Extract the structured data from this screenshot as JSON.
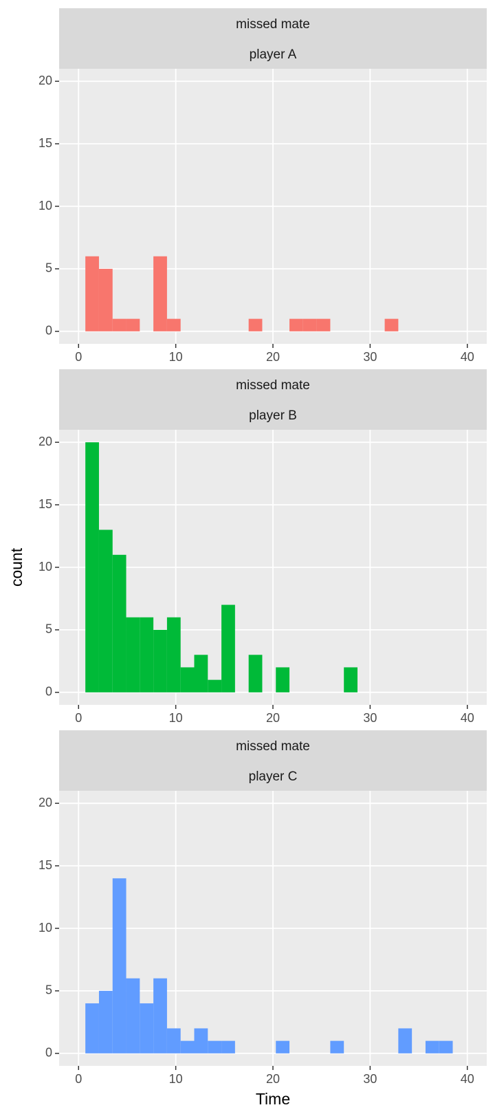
{
  "chart_data": [
    {
      "type": "histogram",
      "strip": [
        "missed mate",
        "player A"
      ],
      "color": "#F8766D",
      "bins": [
        0.7,
        2.1,
        3.5,
        4.9,
        6.3,
        7.7,
        9.1,
        10.5,
        11.9,
        13.3,
        14.7,
        16.1,
        17.5,
        18.9,
        20.3,
        21.7,
        23.1,
        24.5,
        25.9,
        27.3,
        28.7,
        30.1,
        31.5,
        32.9,
        34.3,
        35.7,
        37.1,
        38.5,
        39.9
      ],
      "counts": [
        6,
        5,
        1,
        1,
        0,
        6,
        1,
        0,
        0,
        0,
        0,
        0,
        1,
        0,
        0,
        1,
        1,
        1,
        0,
        0,
        0,
        0,
        1,
        0,
        0,
        0,
        0,
        0
      ],
      "xlim": [
        -2,
        42
      ],
      "ylim": [
        -1,
        21
      ],
      "xticks": [
        0,
        10,
        20,
        30,
        40
      ],
      "yticks": [
        0,
        5,
        10,
        15,
        20
      ],
      "grid": true
    },
    {
      "type": "histogram",
      "strip": [
        "missed mate",
        "player B"
      ],
      "color": "#00BA38",
      "y_label": "count",
      "bins": [
        0.7,
        2.1,
        3.5,
        4.9,
        6.3,
        7.7,
        9.1,
        10.5,
        11.9,
        13.3,
        14.7,
        16.1,
        17.5,
        18.9,
        20.3,
        21.7,
        23.1,
        24.5,
        25.9,
        27.3,
        28.7,
        30.1,
        31.5,
        32.9,
        34.3,
        35.7,
        37.1,
        38.5,
        39.9
      ],
      "counts": [
        20,
        13,
        11,
        6,
        6,
        5,
        6,
        2,
        3,
        1,
        7,
        0,
        3,
        0,
        2,
        0,
        0,
        0,
        0,
        2,
        0,
        0,
        0,
        0,
        0,
        0,
        0,
        0
      ],
      "xlim": [
        -2,
        42
      ],
      "ylim": [
        -1,
        21
      ],
      "xticks": [
        0,
        10,
        20,
        30,
        40
      ],
      "yticks": [
        0,
        5,
        10,
        15,
        20
      ],
      "grid": true
    },
    {
      "type": "histogram",
      "strip": [
        "missed mate",
        "player C"
      ],
      "color": "#619CFF",
      "x_label": "Time",
      "bins": [
        0.7,
        2.1,
        3.5,
        4.9,
        6.3,
        7.7,
        9.1,
        10.5,
        11.9,
        13.3,
        14.7,
        16.1,
        17.5,
        18.9,
        20.3,
        21.7,
        23.1,
        24.5,
        25.9,
        27.3,
        28.7,
        30.1,
        31.5,
        32.9,
        34.3,
        35.7,
        37.1,
        38.5,
        39.9
      ],
      "counts": [
        4,
        5,
        14,
        6,
        4,
        6,
        2,
        1,
        2,
        1,
        1,
        0,
        0,
        0,
        1,
        0,
        0,
        0,
        1,
        0,
        0,
        0,
        0,
        2,
        0,
        1,
        1,
        0
      ],
      "xlim": [
        -2,
        42
      ],
      "ylim": [
        -1,
        21
      ],
      "xticks": [
        0,
        10,
        20,
        30,
        40
      ],
      "yticks": [
        0,
        5,
        10,
        15,
        20
      ],
      "grid": true
    }
  ]
}
